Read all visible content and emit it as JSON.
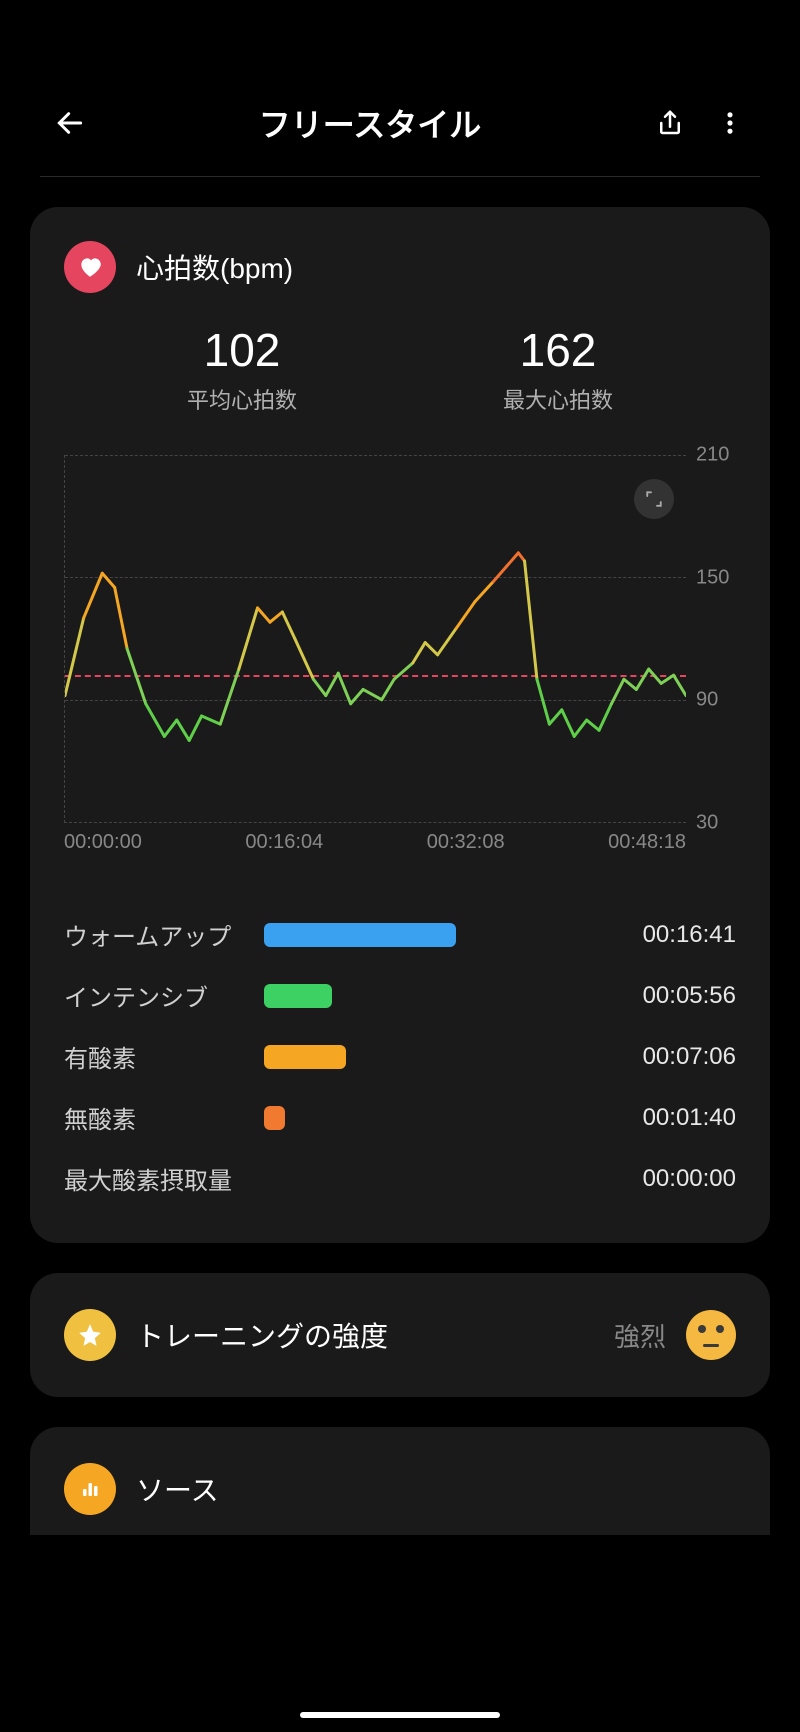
{
  "header": {
    "title": "フリースタイル"
  },
  "heart_rate": {
    "title": "心拍数(bpm)",
    "badge_color": "#e64560",
    "avg_value": "102",
    "avg_label": "平均心拍数",
    "max_value": "162",
    "max_label": "最大心拍数",
    "chart": {
      "type": "line",
      "ylim": [
        30,
        210
      ],
      "ytick_values": [
        30,
        90,
        150,
        210
      ],
      "ytick_labels": [
        "30",
        "90",
        "150",
        "210"
      ],
      "xtick_labels": [
        "00:00:00",
        "00:16:04",
        "00:32:08",
        "00:48:18"
      ],
      "avg_reference": 102,
      "avg_line_color": "#e64560",
      "grid_color": "#444444",
      "series": [
        {
          "t": 0.0,
          "v": 92
        },
        {
          "t": 0.03,
          "v": 130
        },
        {
          "t": 0.06,
          "v": 152
        },
        {
          "t": 0.08,
          "v": 145
        },
        {
          "t": 0.1,
          "v": 115
        },
        {
          "t": 0.13,
          "v": 88
        },
        {
          "t": 0.16,
          "v": 72
        },
        {
          "t": 0.18,
          "v": 80
        },
        {
          "t": 0.2,
          "v": 70
        },
        {
          "t": 0.22,
          "v": 82
        },
        {
          "t": 0.25,
          "v": 78
        },
        {
          "t": 0.28,
          "v": 105
        },
        {
          "t": 0.31,
          "v": 135
        },
        {
          "t": 0.33,
          "v": 128
        },
        {
          "t": 0.35,
          "v": 133
        },
        {
          "t": 0.37,
          "v": 120
        },
        {
          "t": 0.4,
          "v": 100
        },
        {
          "t": 0.42,
          "v": 92
        },
        {
          "t": 0.44,
          "v": 103
        },
        {
          "t": 0.46,
          "v": 88
        },
        {
          "t": 0.48,
          "v": 95
        },
        {
          "t": 0.51,
          "v": 90
        },
        {
          "t": 0.53,
          "v": 100
        },
        {
          "t": 0.56,
          "v": 108
        },
        {
          "t": 0.58,
          "v": 118
        },
        {
          "t": 0.6,
          "v": 112
        },
        {
          "t": 0.63,
          "v": 125
        },
        {
          "t": 0.66,
          "v": 138
        },
        {
          "t": 0.69,
          "v": 148
        },
        {
          "t": 0.71,
          "v": 155
        },
        {
          "t": 0.73,
          "v": 162
        },
        {
          "t": 0.74,
          "v": 158
        },
        {
          "t": 0.76,
          "v": 100
        },
        {
          "t": 0.78,
          "v": 78
        },
        {
          "t": 0.8,
          "v": 85
        },
        {
          "t": 0.82,
          "v": 72
        },
        {
          "t": 0.84,
          "v": 80
        },
        {
          "t": 0.86,
          "v": 75
        },
        {
          "t": 0.88,
          "v": 88
        },
        {
          "t": 0.9,
          "v": 100
        },
        {
          "t": 0.92,
          "v": 95
        },
        {
          "t": 0.94,
          "v": 105
        },
        {
          "t": 0.96,
          "v": 98
        },
        {
          "t": 0.98,
          "v": 102
        },
        {
          "t": 1.0,
          "v": 92
        }
      ],
      "color_stops": [
        {
          "below": 90,
          "color": "#5fcf4a"
        },
        {
          "below": 110,
          "color": "#7ed056"
        },
        {
          "below": 130,
          "color": "#d4c84a"
        },
        {
          "below": 150,
          "color": "#f5a623"
        },
        {
          "below": 999,
          "color": "#f07030"
        }
      ]
    },
    "zones": [
      {
        "name": "ウォームアップ",
        "color": "#3aa0f0",
        "width_pct": 56,
        "time": "00:16:41"
      },
      {
        "name": "インテンシブ",
        "color": "#3dd164",
        "width_pct": 20,
        "time": "00:05:56"
      },
      {
        "name": "有酸素",
        "color": "#f5a623",
        "width_pct": 24,
        "time": "00:07:06"
      },
      {
        "name": "無酸素",
        "color": "#f07a30",
        "width_pct": 6,
        "time": "00:01:40"
      },
      {
        "name": "最大酸素摂取量",
        "color": "#e64560",
        "width_pct": 0,
        "time": "00:00:00"
      }
    ]
  },
  "intensity": {
    "badge_color": "#f0c040",
    "title": "トレーニングの強度",
    "value": "強烈"
  },
  "source": {
    "badge_color": "#f5a623",
    "title": "ソース"
  }
}
